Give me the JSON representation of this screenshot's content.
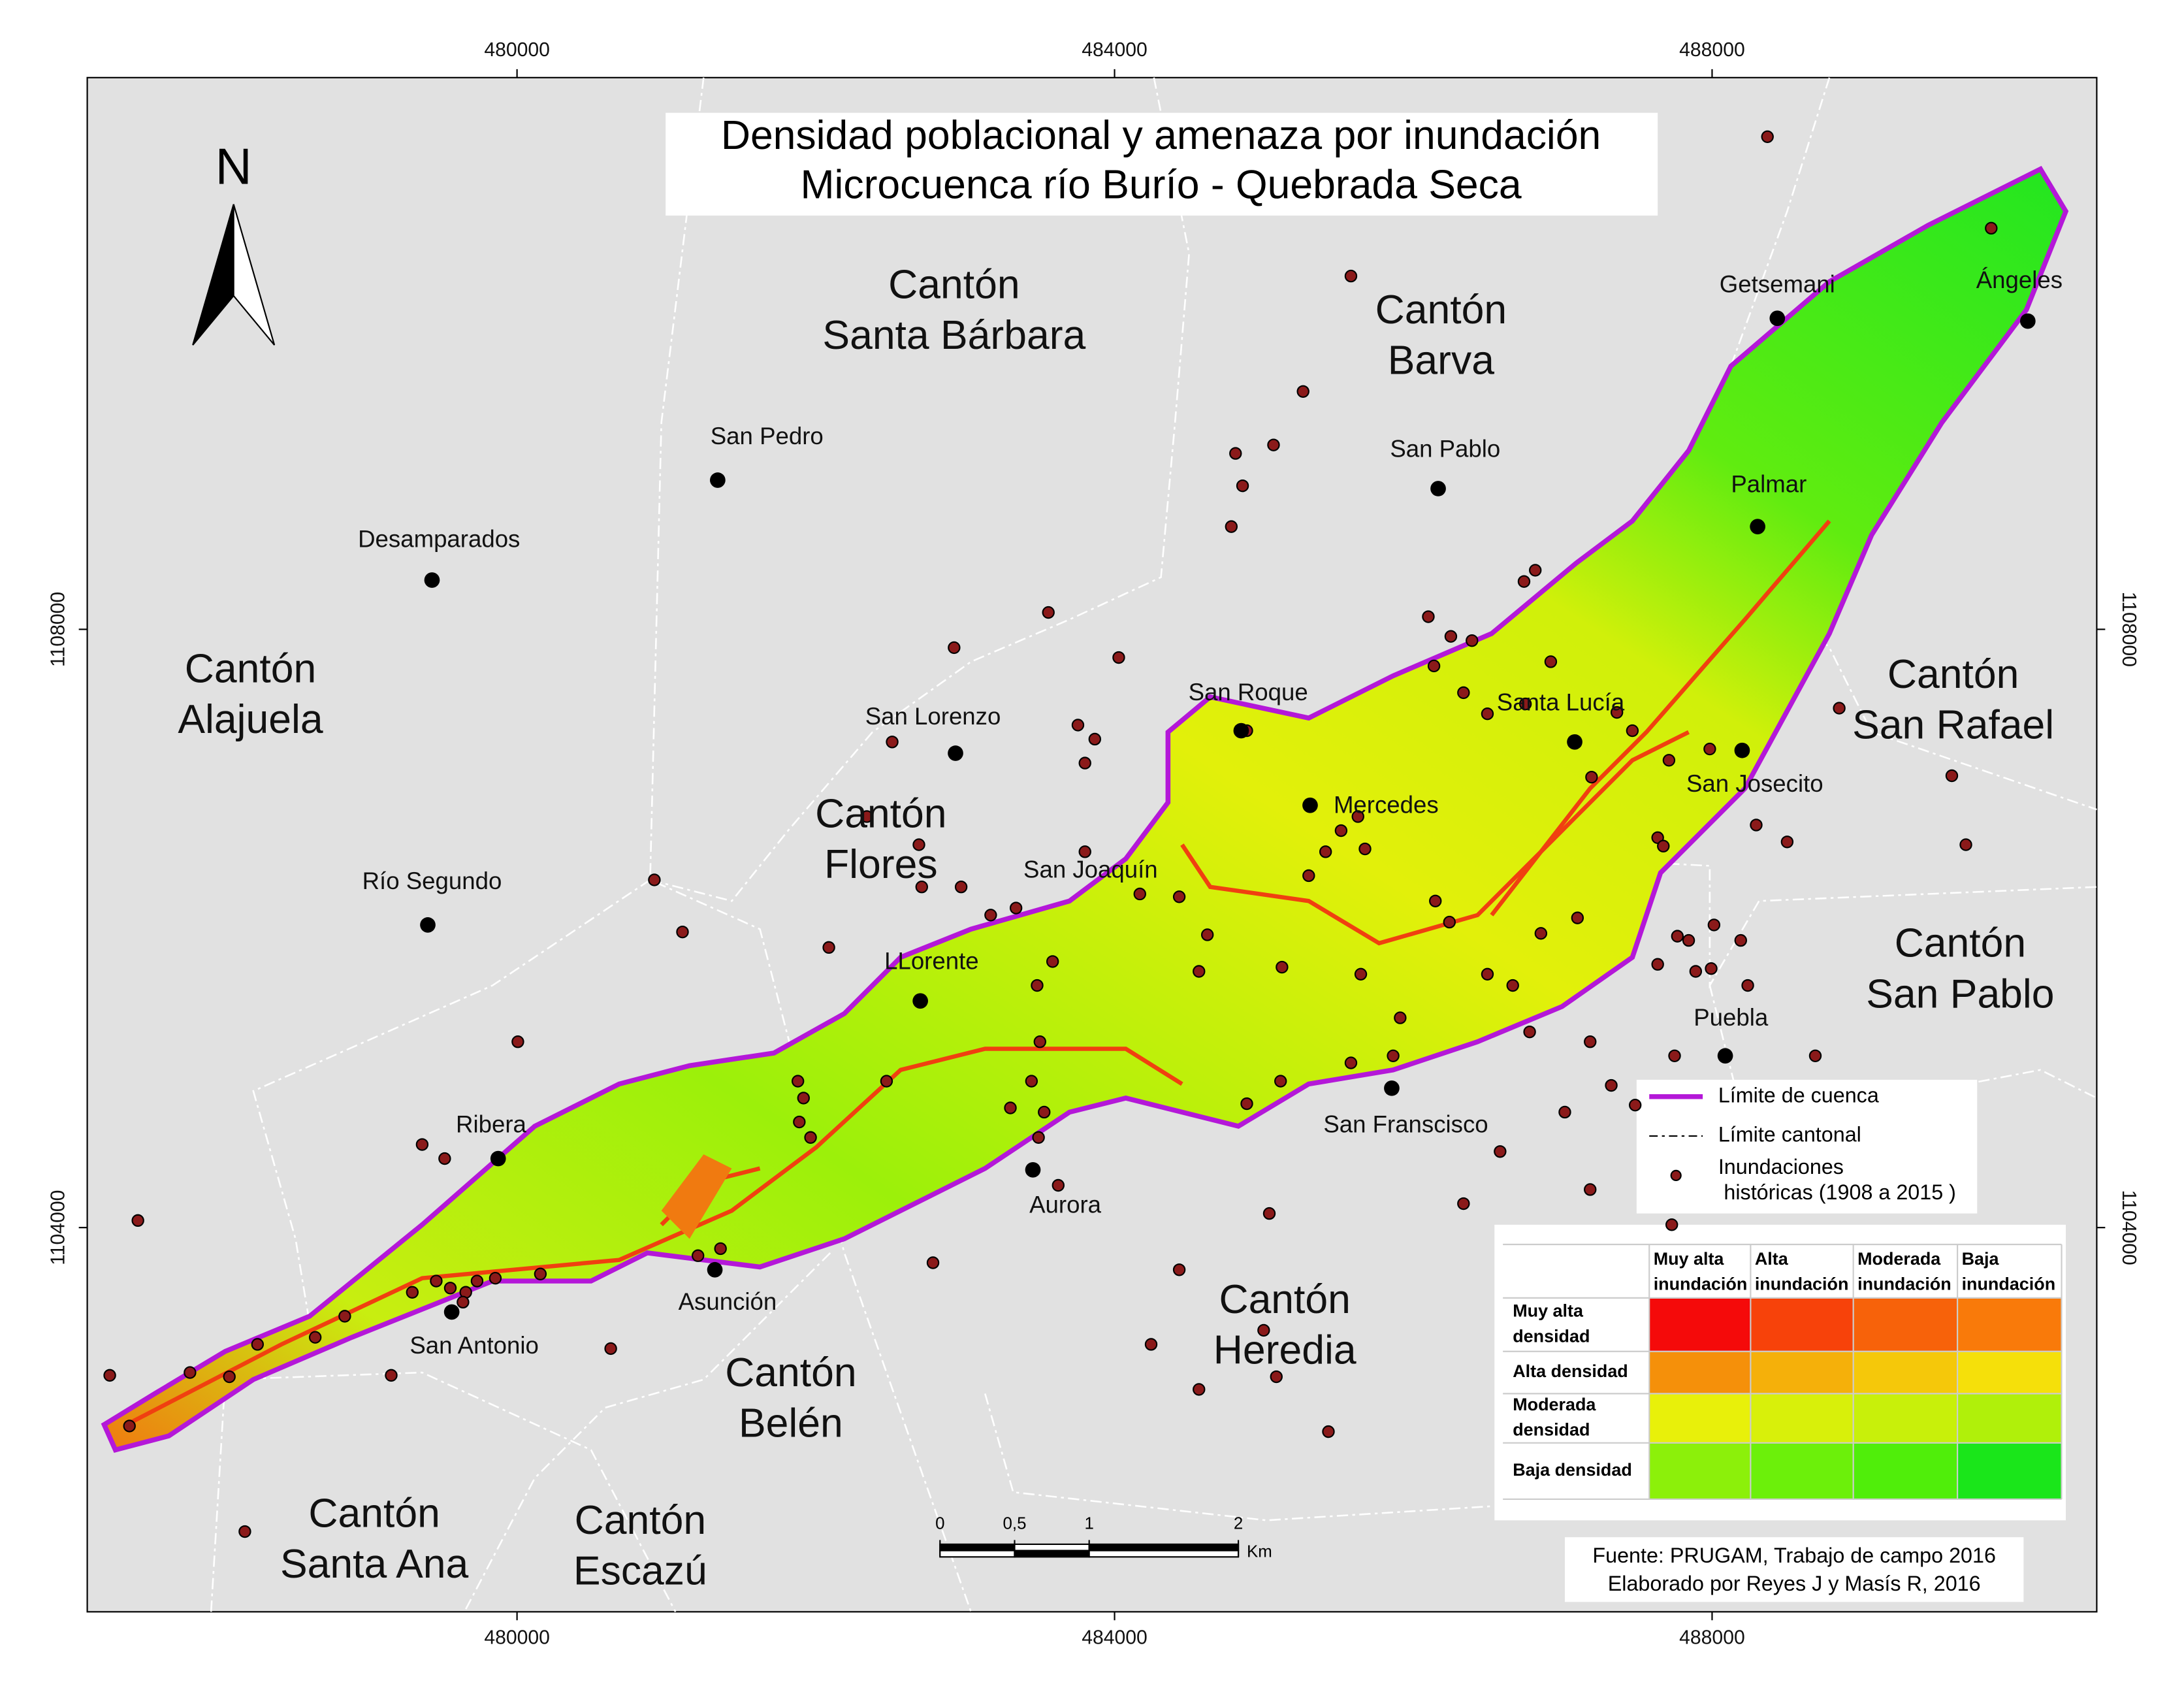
{
  "map": {
    "title": [
      "Densidad poblacional y amenaza por inundación",
      "Microcuenca río Burío - Quebrada Seca"
    ],
    "xlim": [
      477123,
      490575
    ],
    "ylim": [
      1101431,
      1111689
    ],
    "xticks": [
      480000,
      484000,
      488000
    ],
    "yticks": [
      1104000,
      1108000
    ],
    "north": "N",
    "cantons": [
      {
        "lines": [
          "Cantón",
          "Santa Bárbara"
        ]
      },
      {
        "lines": [
          "Cantón",
          "Barva"
        ]
      },
      {
        "lines": [
          "Cantón",
          "Alajuela"
        ]
      },
      {
        "lines": [
          "Cantón",
          "San Rafael"
        ]
      },
      {
        "lines": [
          "Cantón",
          "Flores"
        ]
      },
      {
        "lines": [
          "Cantón",
          "San Pablo"
        ]
      },
      {
        "lines": [
          "Cantón",
          "Heredia"
        ]
      },
      {
        "lines": [
          "Cantón",
          "Belén"
        ]
      },
      {
        "lines": [
          "Cantón",
          "Santa Ana"
        ]
      },
      {
        "lines": [
          "Cantón",
          "Escazú"
        ]
      }
    ],
    "places": [
      "Desamparados",
      "San Pedro",
      "San Pablo",
      "Getsemani",
      "Ángeles",
      "Palmar",
      "San Roque",
      "San Lorenzo",
      "Santa Lucía",
      "Mercedes",
      "San Josecito",
      "San Joaquín",
      "LLorente",
      "Río Segundo",
      "Ribera",
      "San Franscisco",
      "Aurora",
      "Puebla",
      "Asunción",
      "San Antonio"
    ],
    "legend": {
      "basin": "Límite de cuenca",
      "canton": "Límite cantonal",
      "floods": [
        "Inundaciones",
        "históricas (1908 a 2015 )"
      ],
      "basin_color": "#b418d8"
    },
    "matrix": {
      "columns": [
        [
          "Muy alta",
          "inundación"
        ],
        [
          "Alta",
          "inundación"
        ],
        [
          "Moderada",
          "inundación"
        ],
        [
          "Baja",
          "inundación"
        ]
      ],
      "rows": [
        [
          "Muy alta",
          "densidad"
        ],
        [
          "Alta densidad"
        ],
        [
          "Moderada",
          "densidad"
        ],
        [
          "Baja densidad"
        ]
      ],
      "colors": [
        [
          "#f50a0a",
          "#f7420a",
          "#f7620a",
          "#f97a0a"
        ],
        [
          "#f5900a",
          "#f5b00a",
          "#f5c80a",
          "#f5e00a"
        ],
        [
          "#e8f00a",
          "#d8f00a",
          "#c8f00a",
          "#b0f00a"
        ],
        [
          "#8cf00a",
          "#6cf00a",
          "#50ee0a",
          "#1ae61a"
        ]
      ]
    },
    "scale_bar": {
      "ticks": [
        0,
        {
          "value": 0.5,
          "label": "0,5"
        },
        1,
        2
      ],
      "unit": "Km"
    },
    "source": [
      "Fuente: PRUGAM, Trabajo de campo 2016",
      "Elaborado por Reyes J y Masís R, 2016"
    ]
  }
}
